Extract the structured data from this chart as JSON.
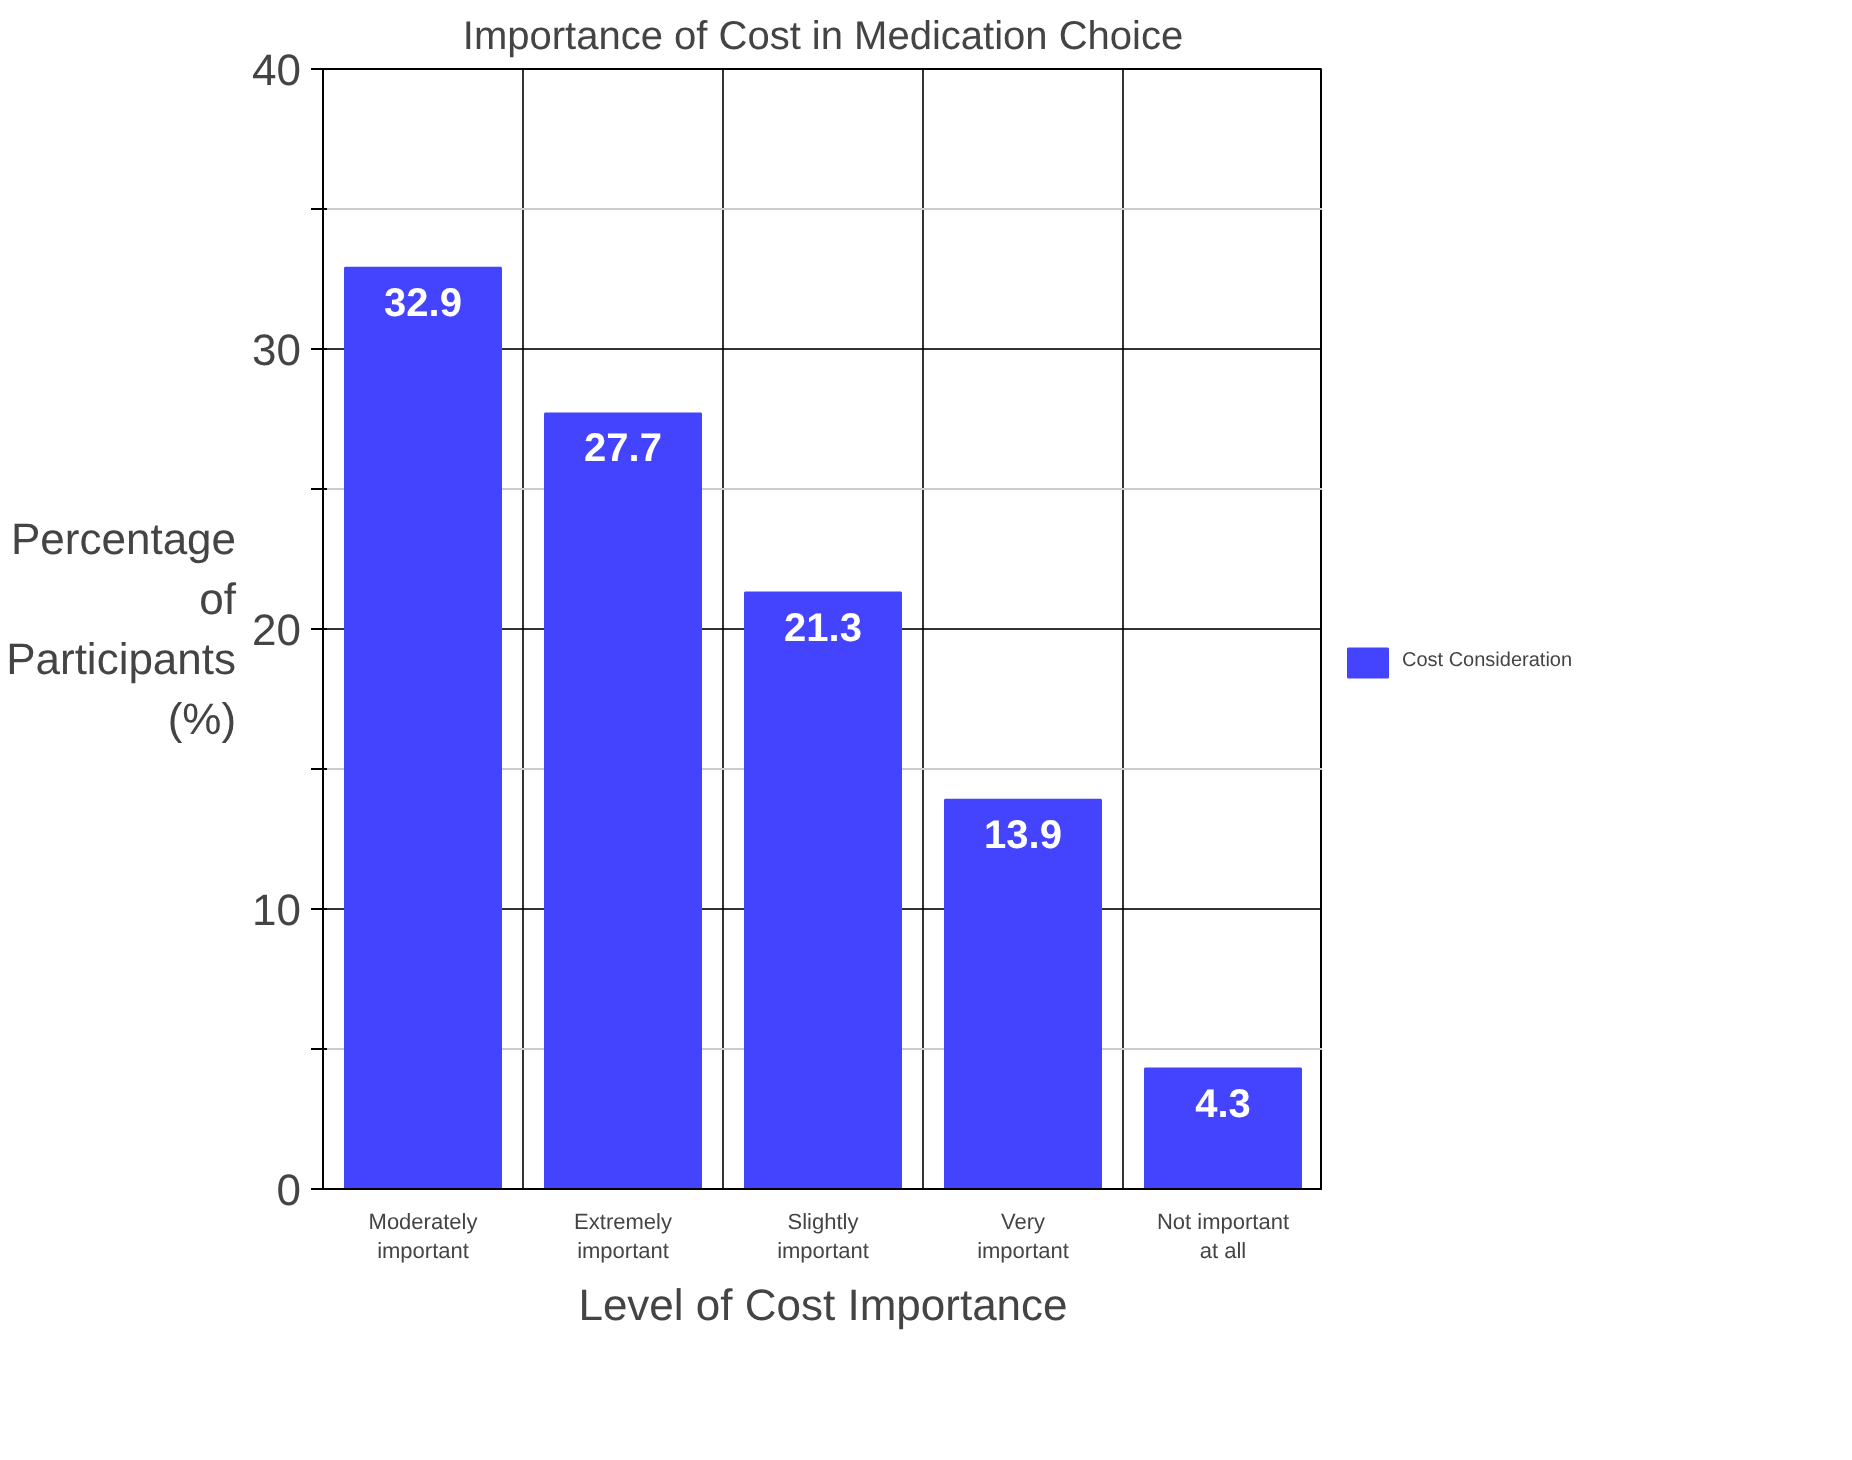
{
  "chart_data": {
    "type": "bar",
    "title": "Importance of Cost in Medication Choice",
    "xlabel": "Level of Cost Importance",
    "ylabel": "Percentage of Participants (%)",
    "categories": [
      "Moderately important",
      "Extremely important",
      "Slightly important",
      "Very important",
      "Not important at all"
    ],
    "series": [
      {
        "name": "Cost Consideration",
        "color": "#4444ff",
        "values": [
          32.9,
          27.7,
          21.3,
          13.9,
          4.3
        ]
      }
    ],
    "ylim": [
      0,
      40
    ],
    "yticks": [
      0,
      {
        "value": 5,
        "label": null
      },
      10,
      {
        "value": 15,
        "label": null
      },
      20,
      {
        "value": 25,
        "label": null
      },
      30,
      {
        "value": 35,
        "label": null
      },
      40
    ],
    "grid": true,
    "legend": "right",
    "data_labels": true
  }
}
